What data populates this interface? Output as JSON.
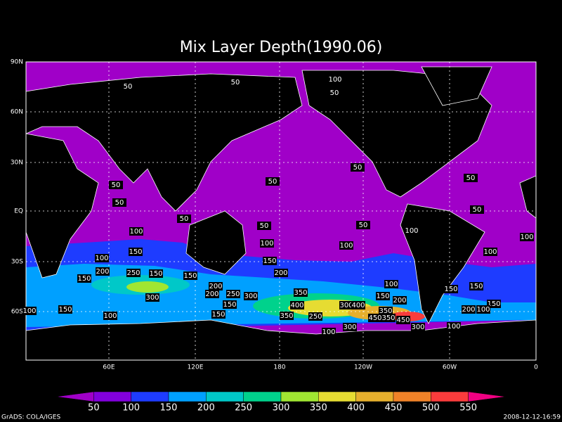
{
  "title": "Mix Layer Depth(1990.06)",
  "y_labels": [
    "90N",
    "60N",
    "30N",
    "EQ",
    "30S",
    "60S"
  ],
  "x_labels": [
    "60E",
    "120E",
    "180",
    "120W",
    "60W",
    "0"
  ],
  "contour_labels": [
    "100",
    "50",
    "50",
    "50",
    "50",
    "50",
    "50",
    "50",
    "50",
    "50",
    "50",
    "50",
    "50",
    "100",
    "100",
    "100",
    "100",
    "100",
    "100",
    "150",
    "100",
    "150",
    "200",
    "250",
    "150",
    "150",
    "150",
    "200",
    "100",
    "150",
    "200",
    "150",
    "300",
    "200",
    "250",
    "300",
    "350",
    "150",
    "200",
    "150",
    "400",
    "300",
    "400",
    "150",
    "100",
    "150",
    "350",
    "200",
    "100",
    "100",
    "150",
    "350",
    "250",
    "450",
    "450",
    "350",
    "100",
    "100",
    "300",
    "300"
  ],
  "colorbar": {
    "labels": [
      "50",
      "100",
      "150",
      "200",
      "250",
      "300",
      "350",
      "400",
      "450",
      "500",
      "550"
    ],
    "colors": [
      "#a000c8",
      "#8200dc",
      "#1e3cff",
      "#00a0ff",
      "#00c8c8",
      "#00d28c",
      "#a0e632",
      "#e6dc32",
      "#e6af2d",
      "#f08228",
      "#fa3c3c",
      "#f00082"
    ]
  },
  "footer": {
    "left": "GrADS: COLA/IGES",
    "right": "2008-12-12-16:59"
  }
}
